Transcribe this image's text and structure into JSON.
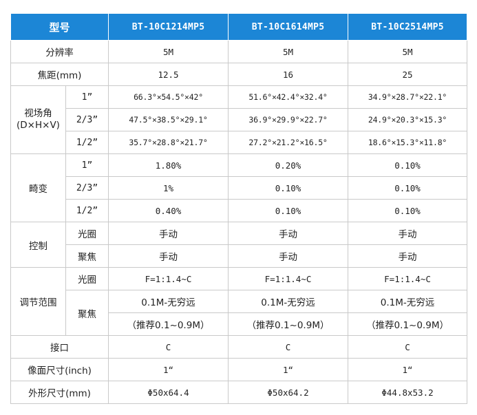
{
  "header": {
    "label": "型号",
    "models": [
      "BT-10C1214MP5",
      "BT-10C1614MP5",
      "BT-10C2514MP5"
    ]
  },
  "resolution": {
    "label": "分辨率",
    "values": [
      "5M",
      "5M",
      "5M"
    ]
  },
  "focal_length": {
    "label": "焦距(mm)",
    "values": [
      "12.5",
      "16",
      "25"
    ]
  },
  "field_of_view": {
    "label_line1": "视场角",
    "label_line2": "(D×H×V)",
    "rows": [
      {
        "format": "1”",
        "values": [
          "66.3°×54.5°×42°",
          "51.6°×42.4°×32.4°",
          "34.9°×28.7°×22.1°"
        ]
      },
      {
        "format": "2/3”",
        "values": [
          "47.5°×38.5°×29.1°",
          "36.9°×29.9°×22.7°",
          "24.9°×20.3°×15.3°"
        ]
      },
      {
        "format": "1/2”",
        "values": [
          "35.7°×28.8°×21.7°",
          "27.2°×21.2°×16.5°",
          "18.6°×15.3°×11.8°"
        ]
      }
    ]
  },
  "distortion": {
    "label": "畸变",
    "rows": [
      {
        "format": "1”",
        "values": [
          "1.80%",
          "0.20%",
          "0.10%"
        ]
      },
      {
        "format": "2/3”",
        "values": [
          "1%",
          "0.10%",
          "0.10%"
        ]
      },
      {
        "format": "1/2”",
        "values": [
          "0.40%",
          "0.10%",
          "0.10%"
        ]
      }
    ]
  },
  "control": {
    "label": "控制",
    "rows": [
      {
        "item": "光圈",
        "values": [
          "手动",
          "手动",
          "手动"
        ]
      },
      {
        "item": "聚焦",
        "values": [
          "手动",
          "手动",
          "手动"
        ]
      }
    ]
  },
  "adjust_range": {
    "label": "调节范围",
    "iris": {
      "item": "光圈",
      "values": [
        "F=1:1.4~C",
        "F=1:1.4~C",
        "F=1:1.4~C"
      ]
    },
    "focus": {
      "item": "聚焦",
      "line1": [
        "0.1M-无穷远",
        "0.1M-无穷远",
        "0.1M-无穷远"
      ],
      "line2": [
        "（推荐0.1~0.9M）",
        "（推荐0.1~0.9M）",
        "（推荐0.1~0.9M）"
      ]
    }
  },
  "mount": {
    "label": "接口",
    "values": [
      "C",
      "C",
      "C"
    ]
  },
  "image_format": {
    "label": "像面尺寸(inch)",
    "values": [
      "1“",
      "1“",
      "1“"
    ]
  },
  "dimensions": {
    "label": "外形尺寸(mm)",
    "values": [
      "Φ50x64.4",
      "Φ50x64.2",
      "Φ44.8x53.2"
    ]
  }
}
